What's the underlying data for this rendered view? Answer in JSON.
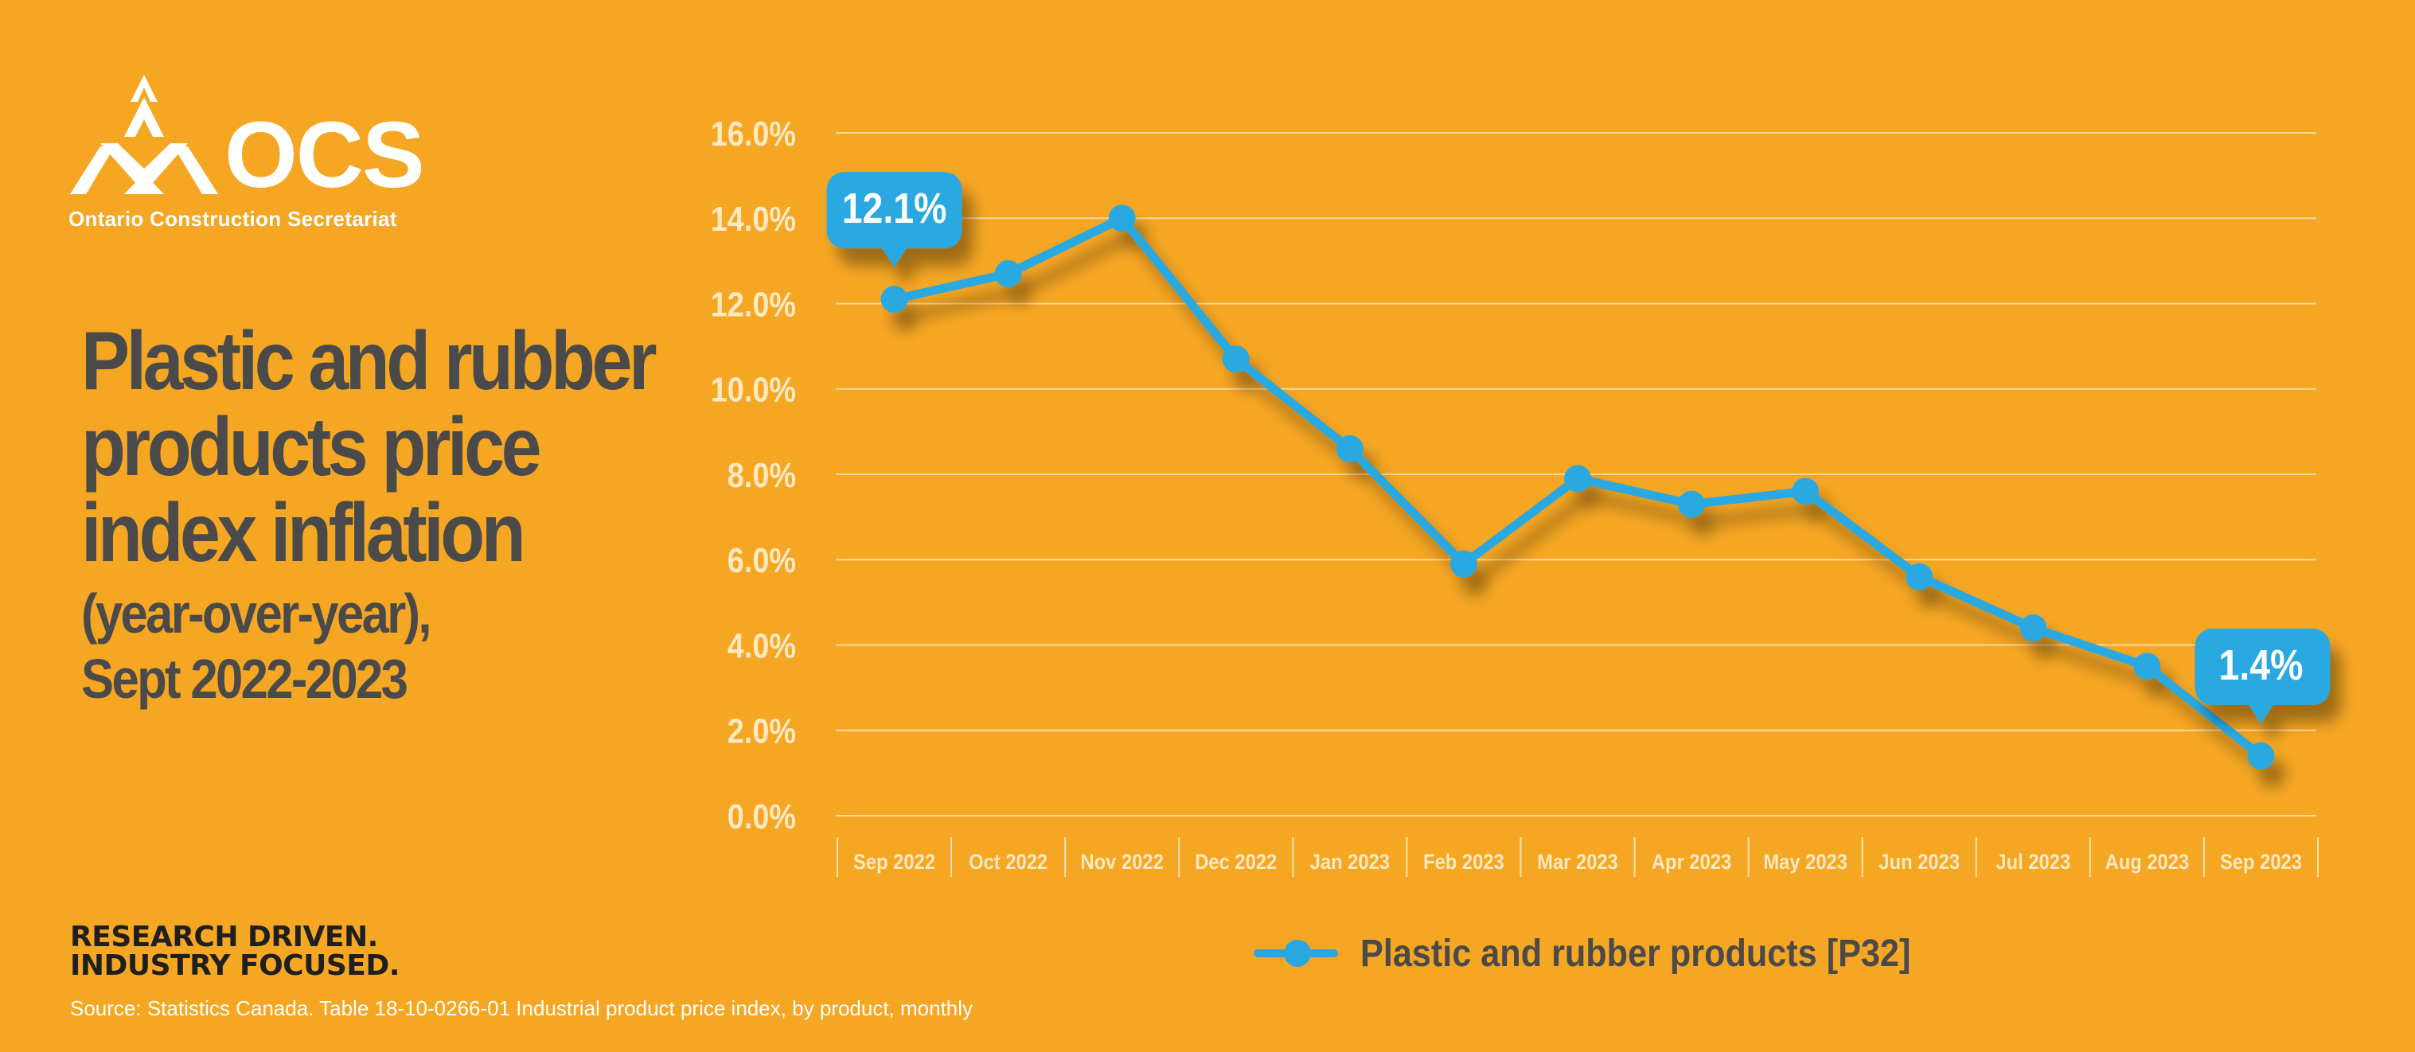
{
  "logo": {
    "wordmark": "OCS",
    "name": "Ontario Construction Secretariat"
  },
  "title": {
    "main": "Plastic and rubber products price index inflation",
    "sub_line1": "(year-over-year),",
    "sub_line2": "Sept 2022-2023"
  },
  "tagline": {
    "line1": "RESEARCH DRIVEN.",
    "line2": "INDUSTRY FOCUSED."
  },
  "source": "Source: Statistics Canada. Table 18-10-0266-01  Industrial product price index, by product, monthly",
  "colors": {
    "background": "#F5A623",
    "series": "#29A8E0",
    "title_text": "#4a4a4a",
    "axis_text": "#FFE9C2"
  },
  "chart_data": {
    "type": "line",
    "title": "Plastic and rubber products price index inflation (year-over-year), Sept 2022-2023",
    "xlabel": "",
    "ylabel": "",
    "categories": [
      "Sep 2022",
      "Oct 2022",
      "Nov 2022",
      "Dec 2022",
      "Jan 2023",
      "Feb 2023",
      "Mar 2023",
      "Apr 2023",
      "May 2023",
      "Jun 2023",
      "Jul 2023",
      "Aug 2023",
      "Sep 2023"
    ],
    "series": [
      {
        "name": "Plastic and rubber products [P32]",
        "values": [
          12.1,
          12.7,
          14.0,
          10.7,
          8.6,
          5.9,
          7.9,
          7.3,
          7.6,
          5.6,
          4.4,
          3.5,
          1.4
        ]
      }
    ],
    "ylim": [
      0,
      16
    ],
    "yticks": [
      "0.0%",
      "2.0%",
      "4.0%",
      "6.0%",
      "8.0%",
      "10.0%",
      "12.0%",
      "14.0%",
      "16.0%"
    ],
    "grid": true,
    "legend": "bottom",
    "annotations": [
      {
        "category": "Sep 2022",
        "label": "12.1%"
      },
      {
        "category": "Sep 2023",
        "label": "1.4%"
      }
    ]
  }
}
